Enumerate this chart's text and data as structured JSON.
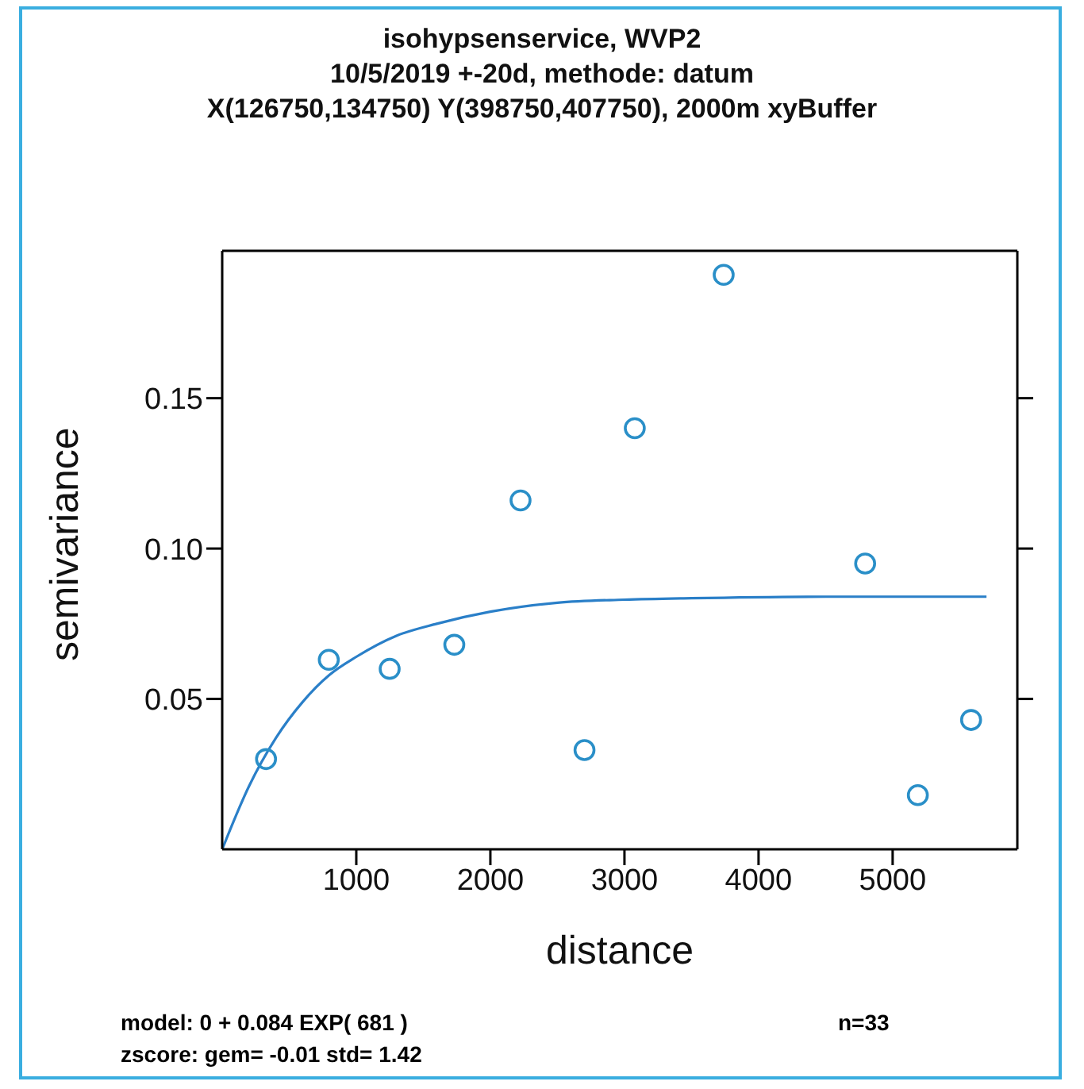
{
  "chart_data": {
    "type": "scatter",
    "title": "isohypsenservice, WVP2\n10/5/2019 +-20d, methode: datum\nX(126750,134750) Y(398750,407750), 2000m xyBuffer",
    "xlabel": "distance",
    "ylabel": "semivariance",
    "annotations": [
      "model: 0 + 0.084 EXP( 681 )",
      "n=33",
      "zscore: gem= -0.01 std= 1.42"
    ],
    "xlim": [
      0,
      5930
    ],
    "xticks": [
      1000,
      2000,
      3000,
      4000,
      5000
    ],
    "ylim": [
      0,
      0.199
    ],
    "yticks": [
      0.05,
      {
        "value": 0.1,
        "label": "0.10"
      },
      0.15
    ],
    "series": [
      {
        "color": "#2a8fc8",
        "marker": "circle",
        "x": [
          327,
          795,
          1249,
          1731,
          2225,
          2702,
          3077,
          3740,
          4795,
          5188,
          5585
        ],
        "values": [
          0.03,
          0.063,
          0.06,
          0.068,
          0.116,
          0.033,
          0.14,
          0.191,
          0.095,
          0.018,
          0.043
        ]
      },
      {
        "type": "line",
        "color": "#2a7fc8",
        "marker": "none",
        "x": [
          0,
          200,
          400,
          600,
          800,
          1000,
          1300,
          1600,
          2000,
          2500,
          3000,
          3500,
          4500,
          5700
        ],
        "values": [
          0,
          0.021,
          0.037,
          0.049,
          0.058,
          0.064,
          0.071,
          0.075,
          0.079,
          0.082,
          0.083,
          0.0835,
          0.084,
          0.084
        ]
      }
    ]
  }
}
